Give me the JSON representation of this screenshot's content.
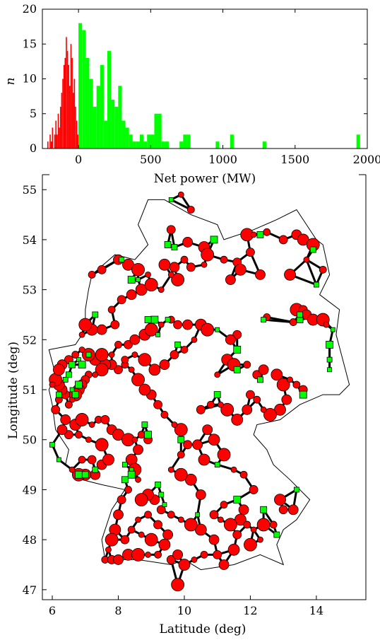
{
  "chart_data": [
    {
      "type": "bar",
      "title": "",
      "xlabel": "Net power (MW)",
      "ylabel": "n",
      "xlim": [
        -250,
        2000
      ],
      "ylim": [
        0,
        20
      ],
      "xticks": [
        "0",
        "500",
        "1000",
        "1500",
        "2000"
      ],
      "yticks": [
        "0",
        "5",
        "10",
        "15",
        "20"
      ],
      "bin_width_negative": 8,
      "bin_width_positive": 25,
      "series": [
        {
          "color": "#ff0000",
          "bins_start": [
            -232,
            -224,
            -216,
            -208,
            -200,
            -192,
            -184,
            -176,
            -168,
            -160,
            -152,
            -144,
            -136,
            -128,
            -120,
            -112,
            -104,
            -96,
            -88,
            -80,
            -72,
            -64,
            -56,
            -48,
            -40,
            -32,
            -24,
            -16,
            -8
          ],
          "counts": [
            0,
            0,
            1,
            0,
            2,
            1,
            3,
            0,
            2,
            4,
            2,
            5,
            3,
            6,
            8,
            10,
            12,
            13,
            16,
            14,
            12,
            9,
            15,
            13,
            8,
            10,
            6,
            4,
            2
          ]
        },
        {
          "color": "#00ff00",
          "bins_start": [
            0,
            25,
            50,
            75,
            100,
            125,
            150,
            175,
            200,
            225,
            250,
            275,
            300,
            325,
            350,
            375,
            400,
            425,
            450,
            475,
            500,
            525,
            550,
            575,
            600,
            625,
            650,
            675,
            700,
            725,
            750,
            950,
            1050,
            1275,
            1925
          ],
          "counts": [
            18,
            17,
            13,
            10,
            6,
            9,
            12,
            4,
            14,
            7,
            6,
            9,
            4,
            3,
            2,
            1,
            1,
            2,
            1,
            2,
            2,
            5,
            5,
            1,
            1,
            0,
            0,
            0,
            1,
            2,
            2,
            1,
            2,
            1,
            2
          ]
        }
      ]
    },
    {
      "type": "scatter",
      "title": "",
      "xlabel": "Latitude (deg)",
      "ylabel": "Longitude (deg)",
      "xlim": [
        5.7,
        15.5
      ],
      "ylim": [
        46.8,
        55.3
      ],
      "xticks": [
        "6",
        "8",
        "10",
        "12",
        "14"
      ],
      "yticks": [
        "47",
        "48",
        "49",
        "50",
        "51",
        "52",
        "53",
        "54",
        "55"
      ],
      "node_colors": {
        "negative": "#ff0000",
        "positive": "#00ff00"
      },
      "negative_nodes": [
        [
          9.9,
          54.9
        ],
        [
          10.2,
          54.6
        ],
        [
          9.6,
          54.2
        ],
        [
          10.1,
          53.95
        ],
        [
          10.6,
          53.85
        ],
        [
          10.7,
          53.7
        ],
        [
          10.6,
          53.5
        ],
        [
          10.0,
          53.6
        ],
        [
          10.2,
          53.45
        ],
        [
          9.7,
          53.45
        ],
        [
          9.4,
          53.5
        ],
        [
          9.8,
          53.2
        ],
        [
          9.6,
          53.3
        ],
        [
          11.2,
          53.6
        ],
        [
          11.6,
          53.55
        ],
        [
          11.4,
          53.2
        ],
        [
          11.7,
          53.4
        ],
        [
          11.9,
          54.1
        ],
        [
          12.1,
          54.1
        ],
        [
          12.5,
          54.15
        ],
        [
          13.0,
          54.0
        ],
        [
          13.4,
          54.1
        ],
        [
          13.6,
          54.0
        ],
        [
          13.9,
          53.9
        ],
        [
          13.7,
          53.6
        ],
        [
          14.2,
          53.4
        ],
        [
          12.0,
          53.75
        ],
        [
          12.3,
          53.3
        ],
        [
          13.2,
          53.3
        ],
        [
          13.4,
          52.6
        ],
        [
          13.6,
          52.45
        ],
        [
          13.3,
          52.35
        ],
        [
          13.6,
          52.6
        ],
        [
          13.7,
          52.5
        ],
        [
          13.9,
          52.4
        ],
        [
          14.2,
          52.4
        ],
        [
          14.3,
          52.3
        ],
        [
          12.5,
          52.45
        ],
        [
          11.6,
          52.1
        ],
        [
          11.4,
          52.0
        ],
        [
          11.3,
          51.6
        ],
        [
          11.5,
          51.5
        ],
        [
          11.0,
          51.3
        ],
        [
          11.9,
          51.5
        ],
        [
          12.2,
          51.3
        ],
        [
          12.4,
          51.4
        ],
        [
          12.8,
          51.3
        ],
        [
          13.0,
          51.1
        ],
        [
          13.2,
          51.2
        ],
        [
          13.4,
          51.1
        ],
        [
          13.6,
          51.0
        ],
        [
          13.1,
          50.8
        ],
        [
          12.9,
          50.6
        ],
        [
          12.6,
          50.5
        ],
        [
          12.4,
          50.6
        ],
        [
          12.2,
          50.8
        ],
        [
          12.0,
          50.9
        ],
        [
          11.9,
          50.6
        ],
        [
          11.6,
          50.4
        ],
        [
          11.3,
          50.6
        ],
        [
          11.1,
          50.7
        ],
        [
          10.8,
          50.7
        ],
        [
          10.5,
          50.6
        ],
        [
          10.7,
          50.2
        ],
        [
          10.9,
          50.0
        ],
        [
          11.2,
          49.7
        ],
        [
          11.5,
          49.4
        ],
        [
          11.8,
          49.3
        ],
        [
          12.1,
          49.0
        ],
        [
          11.8,
          48.6
        ],
        [
          11.7,
          48.4
        ],
        [
          11.4,
          48.3
        ],
        [
          11.1,
          48.4
        ],
        [
          11.2,
          48.7
        ],
        [
          10.9,
          48.5
        ],
        [
          10.5,
          48.9
        ],
        [
          10.2,
          49.2
        ],
        [
          9.9,
          49.3
        ],
        [
          9.6,
          49.4
        ],
        [
          9.9,
          49.7
        ],
        [
          10.1,
          49.9
        ],
        [
          10.4,
          49.9
        ],
        [
          10.6,
          49.6
        ],
        [
          9.9,
          50.2
        ],
        [
          9.7,
          50.3
        ],
        [
          9.4,
          50.5
        ],
        [
          9.2,
          50.7
        ],
        [
          9.0,
          50.9
        ],
        [
          8.8,
          51.0
        ],
        [
          8.6,
          51.2
        ],
        [
          8.4,
          51.4
        ],
        [
          8.2,
          51.5
        ],
        [
          8.0,
          51.4
        ],
        [
          7.8,
          51.5
        ],
        [
          7.6,
          51.5
        ],
        [
          7.5,
          51.4
        ],
        [
          7.3,
          51.3
        ],
        [
          7.1,
          51.3
        ],
        [
          7.0,
          51.2
        ],
        [
          6.9,
          51.1
        ],
        [
          6.8,
          51.0
        ],
        [
          6.7,
          50.9
        ],
        [
          6.6,
          50.8
        ],
        [
          6.5,
          50.7
        ],
        [
          6.4,
          50.9
        ],
        [
          6.3,
          51.0
        ],
        [
          6.2,
          51.1
        ],
        [
          6.1,
          51.2
        ],
        [
          6.0,
          51.1
        ],
        [
          6.2,
          50.8
        ],
        [
          6.1,
          50.6
        ],
        [
          6.4,
          50.4
        ],
        [
          6.7,
          50.3
        ],
        [
          6.9,
          50.4
        ],
        [
          7.2,
          50.3
        ],
        [
          7.4,
          50.4
        ],
        [
          7.6,
          50.4
        ],
        [
          7.8,
          50.2
        ],
        [
          8.0,
          50.1
        ],
        [
          8.3,
          50.0
        ],
        [
          8.5,
          50.0
        ],
        [
          8.7,
          50.1
        ],
        [
          8.9,
          50.0
        ],
        [
          8.6,
          49.8
        ],
        [
          8.4,
          49.6
        ],
        [
          8.5,
          49.4
        ],
        [
          8.6,
          49.2
        ],
        [
          8.3,
          49.0
        ],
        [
          8.1,
          48.8
        ],
        [
          8.0,
          48.5
        ],
        [
          7.9,
          48.2
        ],
        [
          7.8,
          48.0
        ],
        [
          7.7,
          47.8
        ],
        [
          7.6,
          47.6
        ],
        [
          7.8,
          47.6
        ],
        [
          8.0,
          47.6
        ],
        [
          8.3,
          47.7
        ],
        [
          8.6,
          47.7
        ],
        [
          8.9,
          47.7
        ],
        [
          9.2,
          47.7
        ],
        [
          9.6,
          47.6
        ],
        [
          9.8,
          47.7
        ],
        [
          10.0,
          47.5
        ],
        [
          9.8,
          47.1
        ],
        [
          10.3,
          47.6
        ],
        [
          10.6,
          47.7
        ],
        [
          11.0,
          47.7
        ],
        [
          11.2,
          47.5
        ],
        [
          11.5,
          47.8
        ],
        [
          12.0,
          47.9
        ],
        [
          12.3,
          48.0
        ],
        [
          12.7,
          48.3
        ],
        [
          13.0,
          48.6
        ],
        [
          13.3,
          48.6
        ],
        [
          12.9,
          48.8
        ],
        [
          12.4,
          48.3
        ],
        [
          12.1,
          48.2
        ],
        [
          11.9,
          48.3
        ],
        [
          11.6,
          48.1
        ],
        [
          10.9,
          48.0
        ],
        [
          10.5,
          48.2
        ],
        [
          10.2,
          48.3
        ],
        [
          9.9,
          48.4
        ],
        [
          9.6,
          48.5
        ],
        [
          9.3,
          48.6
        ],
        [
          9.1,
          48.8
        ],
        [
          8.9,
          48.9
        ],
        [
          8.7,
          48.8
        ],
        [
          8.6,
          48.4
        ],
        [
          8.9,
          48.5
        ],
        [
          9.2,
          48.3
        ],
        [
          9.5,
          48.1
        ],
        [
          9.4,
          47.9
        ],
        [
          9.0,
          48.0
        ],
        [
          8.7,
          48.1
        ],
        [
          8.4,
          48.2
        ],
        [
          8.2,
          48.0
        ],
        [
          7.3,
          49.3
        ],
        [
          7.0,
          49.3
        ],
        [
          6.8,
          49.3
        ],
        [
          6.6,
          49.4
        ],
        [
          6.9,
          49.6
        ],
        [
          7.2,
          49.6
        ],
        [
          7.5,
          49.5
        ],
        [
          7.7,
          49.6
        ],
        [
          7.5,
          49.9
        ],
        [
          7.1,
          50.0
        ],
        [
          6.8,
          50.1
        ],
        [
          6.5,
          50.1
        ],
        [
          6.3,
          50.2
        ],
        [
          7.3,
          51.6
        ],
        [
          7.1,
          51.7
        ],
        [
          6.9,
          51.8
        ],
        [
          6.7,
          51.7
        ],
        [
          6.5,
          51.6
        ],
        [
          6.3,
          51.5
        ],
        [
          6.2,
          51.4
        ],
        [
          7.5,
          51.7
        ],
        [
          7.8,
          51.7
        ],
        [
          8.0,
          51.9
        ],
        [
          8.3,
          51.9
        ],
        [
          8.5,
          52.0
        ],
        [
          8.8,
          52.1
        ],
        [
          9.0,
          52.2
        ],
        [
          9.3,
          52.3
        ],
        [
          9.6,
          52.4
        ],
        [
          9.8,
          52.3
        ],
        [
          10.1,
          52.3
        ],
        [
          10.5,
          52.3
        ],
        [
          10.7,
          52.2
        ],
        [
          10.3,
          52.0
        ],
        [
          10.0,
          51.8
        ],
        [
          9.7,
          51.7
        ],
        [
          9.4,
          51.5
        ],
        [
          9.1,
          51.4
        ],
        [
          8.8,
          51.6
        ],
        [
          8.5,
          51.7
        ],
        [
          8.2,
          51.6
        ],
        [
          7.9,
          52.3
        ],
        [
          7.5,
          52.2
        ],
        [
          7.2,
          52.2
        ],
        [
          7.0,
          52.3
        ],
        [
          6.9,
          52.1
        ],
        [
          7.8,
          52.6
        ],
        [
          8.1,
          52.8
        ],
        [
          8.4,
          52.9
        ],
        [
          8.7,
          53.0
        ],
        [
          9.0,
          53.1
        ],
        [
          9.3,
          53.0
        ],
        [
          7.2,
          53.3
        ],
        [
          7.5,
          53.4
        ],
        [
          8.0,
          53.6
        ],
        [
          8.3,
          53.5
        ],
        [
          8.6,
          53.4
        ],
        [
          8.9,
          53.3
        ]
      ],
      "positive_nodes": [
        [
          9.6,
          54.8
        ],
        [
          10.9,
          54.0
        ],
        [
          9.5,
          53.9
        ],
        [
          9.7,
          53.85
        ],
        [
          8.1,
          53.6
        ],
        [
          8.6,
          53.2
        ],
        [
          8.4,
          53.2
        ],
        [
          12.3,
          54.1
        ],
        [
          13.9,
          53.8
        ],
        [
          14.0,
          53.1
        ],
        [
          14.5,
          52.2
        ],
        [
          14.4,
          51.9
        ],
        [
          13.5,
          52.4
        ],
        [
          13.5,
          52.5
        ],
        [
          12.4,
          52.4
        ],
        [
          11.0,
          52.2
        ],
        [
          11.6,
          51.8
        ],
        [
          11.6,
          51.4
        ],
        [
          12.3,
          51.2
        ],
        [
          14.4,
          51.6
        ],
        [
          14.4,
          51.4
        ],
        [
          13.6,
          50.9
        ],
        [
          11.0,
          50.9
        ],
        [
          9.8,
          51.9
        ],
        [
          9.5,
          52.4
        ],
        [
          9.2,
          52.1
        ],
        [
          9.1,
          52.4
        ],
        [
          8.9,
          52.4
        ],
        [
          7.3,
          52.5
        ],
        [
          7.1,
          51.7
        ],
        [
          6.8,
          51.6
        ],
        [
          6.9,
          51.5
        ],
        [
          6.6,
          51.5
        ],
        [
          6.5,
          51.3
        ],
        [
          6.4,
          51.2
        ],
        [
          6.6,
          51.0
        ],
        [
          6.8,
          51.1
        ],
        [
          6.7,
          50.9
        ],
        [
          6.2,
          50.9
        ],
        [
          6.0,
          49.9
        ],
        [
          6.2,
          49.6
        ],
        [
          6.8,
          49.3
        ],
        [
          7.0,
          49.3
        ],
        [
          7.3,
          49.4
        ],
        [
          8.2,
          49.5
        ],
        [
          8.4,
          49.4
        ],
        [
          8.4,
          49.3
        ],
        [
          8.2,
          49.2
        ],
        [
          9.2,
          49.1
        ],
        [
          9.3,
          48.9
        ],
        [
          9.4,
          48.7
        ],
        [
          8.9,
          50.1
        ],
        [
          9.9,
          50.0
        ],
        [
          8.8,
          50.3
        ],
        [
          11.0,
          49.5
        ],
        [
          10.4,
          48.5
        ],
        [
          11.6,
          48.8
        ],
        [
          12.4,
          48.6
        ],
        [
          12.8,
          48.1
        ],
        [
          13.4,
          49.0
        ]
      ],
      "edges": "transmission lines"
    }
  ]
}
